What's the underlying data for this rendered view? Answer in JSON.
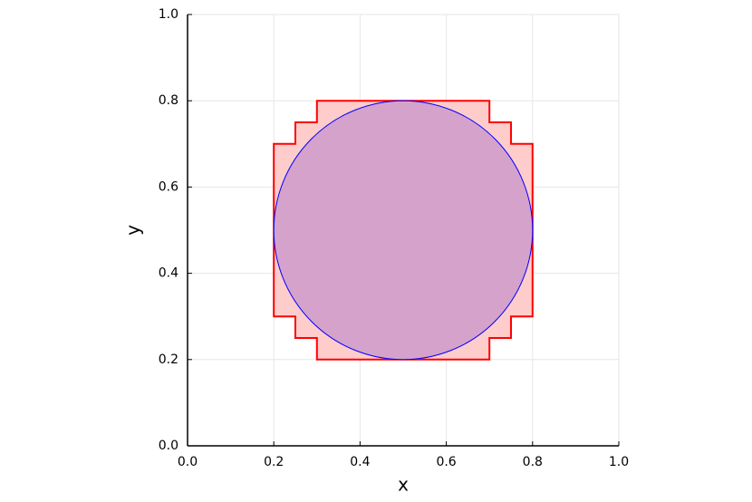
{
  "chart_data": {
    "type": "shapes",
    "xlabel": "x",
    "ylabel": "y",
    "xlim": [
      0,
      1
    ],
    "ylim": [
      0,
      1
    ],
    "xticks": [
      {
        "value": 0,
        "label": "0.0"
      },
      0.2,
      0.4,
      0.6,
      0.8,
      {
        "value": 1,
        "label": "1.0"
      }
    ],
    "yticks": [
      {
        "value": 0,
        "label": "0.0"
      },
      0.2,
      0.4,
      0.6,
      0.8,
      {
        "value": 1,
        "label": "1.0"
      }
    ],
    "grid": true,
    "polygon": {
      "x": [
        0.3,
        0.7,
        0.7,
        0.75,
        0.75,
        0.8,
        0.8,
        0.75,
        0.75,
        0.7,
        0.7,
        0.3,
        0.3,
        0.25,
        0.25,
        0.2,
        0.2,
        0.25,
        0.25,
        0.3
      ],
      "y": [
        0.8,
        0.8,
        0.75,
        0.75,
        0.7,
        0.7,
        0.3,
        0.3,
        0.25,
        0.25,
        0.2,
        0.2,
        0.25,
        0.25,
        0.3,
        0.3,
        0.7,
        0.7,
        0.75,
        0.75
      ],
      "color": "#ff0000",
      "fill": "#ffcccc"
    },
    "circle": {
      "cx": 0.5,
      "cy": 0.5,
      "r": 0.3,
      "color": "#0000ff",
      "fill": "#d5a2cc"
    }
  }
}
